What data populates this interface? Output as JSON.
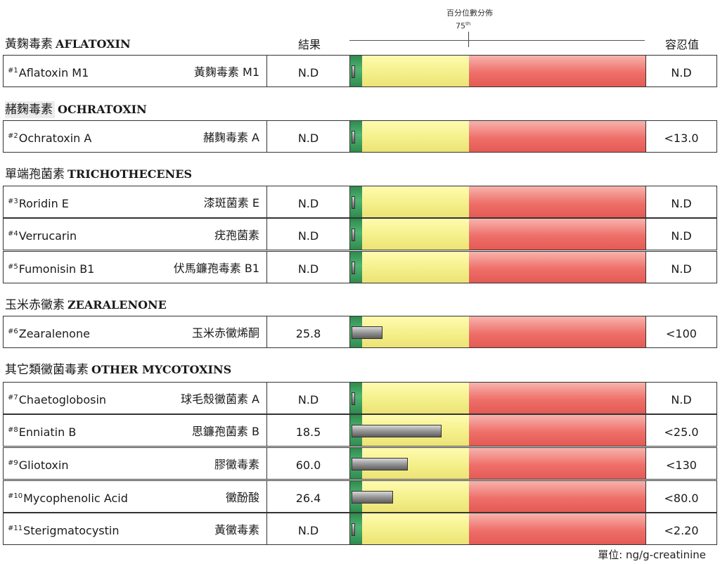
{
  "header": {
    "percentile_title": "百分位數分佈",
    "percentile_mark": "75",
    "percentile_sup": "th",
    "result_label": "結果",
    "tolerance_label": "容忍值"
  },
  "sections": [
    {
      "zh": "黃麴毒素",
      "en": "AFLATOXIN",
      "rows": [
        {
          "num": "#1",
          "en": "Aflatoxin M1",
          "zh": "黃麴毒素 M1",
          "result": "N.D",
          "tolerance": "N.D",
          "level": 0
        }
      ]
    },
    {
      "zh": "赭麴毒素",
      "en": "OCHRATOXIN",
      "rows": [
        {
          "num": "#2",
          "en": "Ochratoxin A",
          "zh": "赭麴毒素 A",
          "result": "N.D",
          "tolerance": "<13.0",
          "level": 0
        }
      ]
    },
    {
      "zh": "單端孢菌素",
      "en": "TRICHOTHECENES",
      "rows": [
        {
          "num": "#3",
          "en": "Roridin E",
          "zh": "漆斑菌素 E",
          "result": "N.D",
          "tolerance": "N.D",
          "level": 0
        },
        {
          "num": "#4",
          "en": "Verrucarin",
          "zh": "疣孢菌素",
          "result": "N.D",
          "tolerance": "N.D",
          "level": 0
        },
        {
          "num": "#5",
          "en": "Fumonisin B1",
          "zh": "伏馬鐮孢毒素 B1",
          "result": "N.D",
          "tolerance": "N.D",
          "level": 0
        }
      ]
    },
    {
      "zh": "玉米赤黴素",
      "en": "ZEARALENONE",
      "rows": [
        {
          "num": "#6",
          "en": "Zearalenone",
          "zh": "玉米赤黴烯酮",
          "result": "25.8",
          "tolerance": "<100",
          "level": 0.105
        }
      ]
    },
    {
      "zh": "其它類黴菌毒素",
      "en": "OTHER MYCOTOXINS",
      "rows": [
        {
          "num": "#7",
          "en": "Chaetoglobosin",
          "zh": "球毛殼黴菌素 A",
          "result": "N.D",
          "tolerance": "N.D",
          "level": 0
        },
        {
          "num": "#8",
          "en": "Enniatin B",
          "zh": "思鐮孢菌素 B",
          "result": "18.5",
          "tolerance": "<25.0",
          "level": 0.305
        },
        {
          "num": "#9",
          "en": "Gliotoxin",
          "zh": "膠黴毒素",
          "result": "60.0",
          "tolerance": "<130",
          "level": 0.19
        },
        {
          "num": "#10",
          "en": "Mycophenolic Acid",
          "zh": "黴酚酸",
          "result": "26.4",
          "tolerance": "<80.0",
          "level": 0.14
        },
        {
          "num": "#11",
          "en": "Sterigmatocystin",
          "zh": "黃黴毒素",
          "result": "N.D",
          "tolerance": "<2.20",
          "level": 0
        }
      ]
    }
  ],
  "footer": {
    "unit": "單位: ng/g-creatinine"
  }
}
